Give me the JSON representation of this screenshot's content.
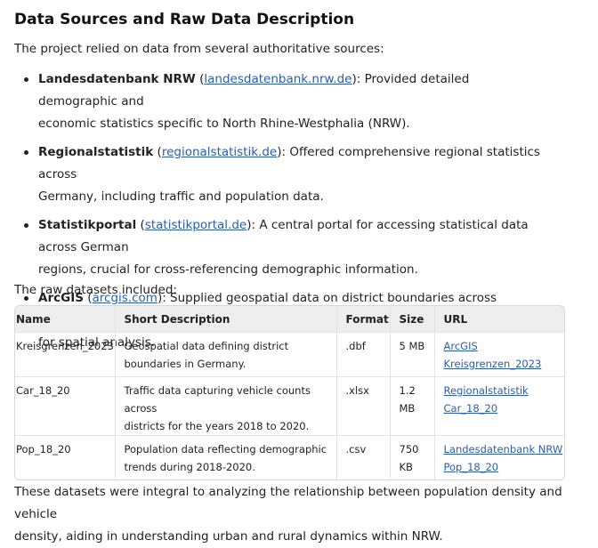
{
  "heading": "Data Sources and Raw Data Description",
  "intro": "The project relied on data from several authoritative sources:",
  "sources": [
    {
      "name": "Landesdatenbank NRW",
      "link": "landesdatenbank.nrw.de",
      "pre_desc_1": "): Provided detailed demographic and",
      "desc_2": "economic statistics specific to North Rhine-Westphalia (NRW)."
    },
    {
      "name": "Regionalstatistik",
      "link": "regionalstatistik.de",
      "pre_desc_1": "): Offered comprehensive regional statistics across",
      "desc_2": "Germany, including traffic and population data."
    },
    {
      "name": "Statistikportal",
      "link": "statistikportal.de",
      "pre_desc_1": "): A central portal for accessing statistical data across German",
      "desc_2": "regions, crucial for cross-referencing demographic information."
    },
    {
      "name": "ArcGIS",
      "link": "arcgis.com",
      "pre_desc_1": "): Supplied geospatial data on district boundaries across Germany, essential",
      "desc_2": "for spatial analysis."
    }
  ],
  "paren_open": " (",
  "raw_intro": "The raw datasets included:",
  "table": {
    "headers": [
      "Name",
      "Short Description",
      "Format",
      "Size",
      "URL"
    ],
    "rows": [
      {
        "name": "Kreisgrenzen_2023",
        "desc_1": "Geospatial data defining district",
        "desc_2": "boundaries in Germany.",
        "format": ".dbf",
        "size_1": "5 MB",
        "size_2": "",
        "url_1": "ArcGIS Kreisgrenzen_2023",
        "url_2": ""
      },
      {
        "name": "Car_18_20",
        "desc_1": "Traffic data capturing vehicle counts across",
        "desc_2": "districts for the years 2018 to 2020.",
        "format": ".xlsx",
        "size_1": "1.2",
        "size_2": "MB",
        "url_1": "Regionalstatistik",
        "url_2": "Car_18_20"
      },
      {
        "name": "Pop_18_20",
        "desc_1": "Population data reflecting demographic",
        "desc_2": "trends during 2018-2020.",
        "format": ".csv",
        "size_1": "750",
        "size_2": "KB",
        "url_1": "Landesdatenbank NRW",
        "url_2": "Pop_18_20"
      }
    ]
  },
  "conclusion_1": "These datasets were integral to analyzing the relationship between population density and vehicle",
  "conclusion_2": "density, aiding in understanding urban and rural dynamics within NRW."
}
